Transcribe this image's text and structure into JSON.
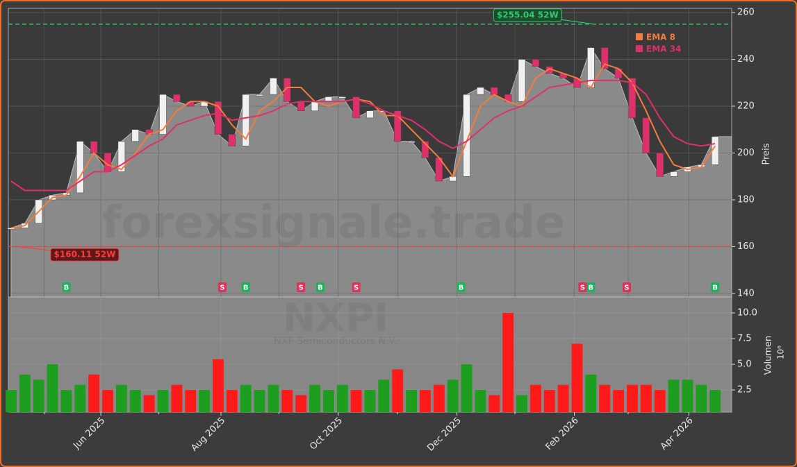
{
  "chart_data": {
    "type": "candlestick",
    "ticker": "NXPI",
    "company": "NXP Semiconductors N.V.",
    "watermark": "forexsignale.trade",
    "y_label": "Preis",
    "y2_label": "Volumen",
    "y2_unit": "10⁶",
    "xlim": [
      -0.2,
      52.2
    ],
    "xticks": [
      {
        "value": 6.5,
        "label": "Jun 2025"
      },
      {
        "value": 15.2,
        "label": "Aug 2025"
      },
      {
        "value": 23.7,
        "label": "Oct 2025"
      },
      {
        "value": 32.3,
        "label": "Dec 2025"
      },
      {
        "value": 40.8,
        "label": "Feb 2026"
      },
      {
        "value": 49.1,
        "label": "Apr 2026"
      }
    ],
    "xticks_minor": [
      2.4,
      10.7,
      19.4,
      28,
      36.5,
      44.7
    ],
    "ylim": [
      138.5,
      261.8
    ],
    "yticks": [
      140,
      160,
      180,
      200,
      220,
      240,
      260
    ],
    "y2lim": [
      0.34,
      11.55
    ],
    "y2ticks": [
      {
        "value": 2.5,
        "label": "2.5"
      },
      {
        "value": 5,
        "label": "5.0"
      },
      {
        "value": 7.5,
        "label": "7.5"
      },
      {
        "value": 10,
        "label": "10.0"
      }
    ],
    "grid": true,
    "up_color": "#1e9e1e",
    "down_color": "#ff1a1a",
    "close": [
      168,
      170,
      180,
      182,
      183,
      205,
      200,
      192,
      205,
      210,
      208,
      225,
      222,
      220,
      222,
      208,
      203,
      225,
      225,
      232,
      222,
      218,
      222,
      224,
      224,
      215,
      218,
      218,
      205,
      205,
      198,
      188,
      190,
      225,
      228,
      225,
      222,
      240,
      237,
      234,
      232,
      228,
      245,
      236,
      232,
      215,
      200,
      190,
      192,
      194,
      195,
      207
    ],
    "volume": [
      2.5,
      4,
      3.5,
      5,
      2.5,
      3,
      4,
      2.5,
      3,
      2.5,
      2,
      2.5,
      3,
      2.5,
      2.5,
      5.5,
      2.5,
      3,
      2.5,
      3,
      2.5,
      2,
      3,
      2.5,
      3,
      2.5,
      2.5,
      3.5,
      4.5,
      2.5,
      2.5,
      3,
      3.5,
      5,
      2.5,
      2,
      10,
      2,
      3,
      2.5,
      3,
      7,
      4,
      3,
      2.5,
      3,
      3,
      2.5,
      3.5,
      3.5,
      3,
      2.5
    ],
    "series": [
      {
        "name": "EMA 8",
        "color": "#f47c3c",
        "values": [
          168,
          169,
          175,
          181,
          182,
          190,
          200,
          195,
          193,
          200,
          208,
          210,
          218,
          222,
          222,
          220,
          212,
          206,
          218,
          222,
          228,
          228,
          222,
          220,
          222,
          223,
          222,
          216,
          216,
          210,
          204,
          198,
          190,
          205,
          220,
          225,
          222,
          220,
          232,
          236,
          234,
          232,
          228,
          238,
          236,
          230,
          218,
          205,
          195,
          193,
          194,
          203
        ]
      },
      {
        "name": "EMA 34",
        "color": "#e0306a",
        "values": [
          188,
          184,
          184,
          184,
          184,
          188,
          192,
          192,
          195,
          199,
          203,
          206,
          212,
          214,
          216,
          217,
          214,
          215,
          216,
          218,
          221,
          222,
          222,
          222,
          222,
          223,
          221,
          218,
          216,
          214,
          210,
          205,
          202,
          205,
          210,
          215,
          218,
          220,
          224,
          228,
          229,
          230,
          231,
          231,
          231,
          230,
          225,
          215,
          207,
          204,
          203,
          204
        ]
      }
    ],
    "levels": [
      {
        "value": 255.04,
        "label": "$255.04 52W",
        "color": "#2ecc71",
        "x": 42.2
      },
      {
        "value": 160.11,
        "label": "$160.11 52W",
        "color": "#ff3b3b",
        "x": 0.3
      }
    ],
    "signals": [
      {
        "label": "B",
        "x": 4
      },
      {
        "label": "S",
        "x": 15.3
      },
      {
        "label": "B",
        "x": 17
      },
      {
        "label": "S",
        "x": 21
      },
      {
        "label": "B",
        "x": 22.4
      },
      {
        "label": "S",
        "x": 25
      },
      {
        "label": "B",
        "x": 32.6
      },
      {
        "label": "S",
        "x": 41.4
      },
      {
        "label": "B",
        "x": 42
      },
      {
        "label": "S",
        "x": 44.6
      },
      {
        "label": "B",
        "x": 51
      }
    ]
  }
}
